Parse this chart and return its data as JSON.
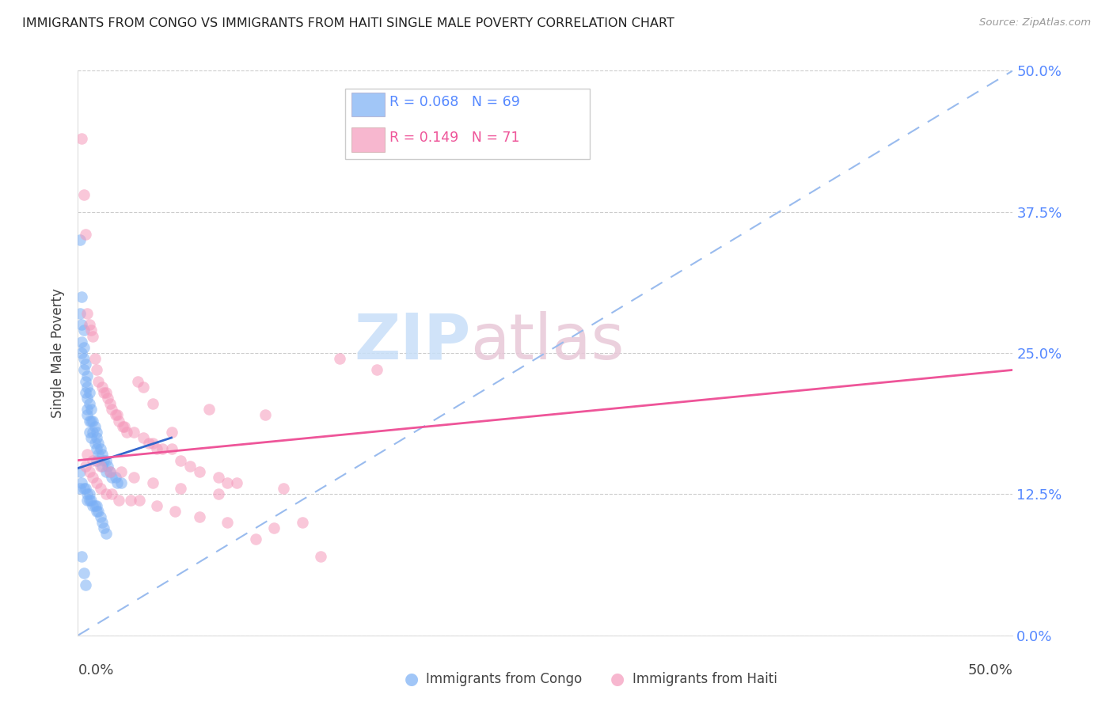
{
  "title": "IMMIGRANTS FROM CONGO VS IMMIGRANTS FROM HAITI SINGLE MALE POVERTY CORRELATION CHART",
  "source": "Source: ZipAtlas.com",
  "ylabel": "Single Male Poverty",
  "ytick_values": [
    0.0,
    12.5,
    25.0,
    37.5,
    50.0
  ],
  "xlim": [
    0.0,
    50.0
  ],
  "ylim": [
    0.0,
    50.0
  ],
  "congo_R": "0.068",
  "congo_N": "69",
  "haiti_R": "0.149",
  "haiti_N": "71",
  "congo_color": "#7aaff5",
  "haiti_color": "#f599bb",
  "congo_trend_color": "#3366cc",
  "haiti_trend_color": "#ee5599",
  "diagonal_color": "#99bbee",
  "watermark_zip": "ZIP",
  "watermark_atlas": "atlas",
  "congo_x": [
    0.1,
    0.1,
    0.2,
    0.2,
    0.2,
    0.2,
    0.3,
    0.3,
    0.3,
    0.3,
    0.4,
    0.4,
    0.4,
    0.5,
    0.5,
    0.5,
    0.5,
    0.5,
    0.6,
    0.6,
    0.6,
    0.6,
    0.7,
    0.7,
    0.7,
    0.8,
    0.8,
    0.9,
    0.9,
    1.0,
    1.0,
    1.0,
    1.0,
    1.1,
    1.1,
    1.2,
    1.3,
    1.3,
    1.4,
    1.5,
    1.5,
    1.6,
    1.7,
    1.8,
    2.0,
    2.1,
    2.3,
    0.1,
    0.1,
    0.2,
    0.3,
    0.4,
    0.5,
    0.5,
    0.6,
    0.6,
    0.7,
    0.8,
    0.9,
    1.0,
    1.0,
    1.1,
    1.2,
    1.3,
    1.4,
    1.5,
    0.2,
    0.3,
    0.4
  ],
  "congo_y": [
    35.0,
    28.5,
    30.0,
    27.5,
    26.0,
    25.0,
    27.0,
    25.5,
    24.5,
    23.5,
    24.0,
    22.5,
    21.5,
    23.0,
    22.0,
    21.0,
    20.0,
    19.5,
    21.5,
    20.5,
    19.0,
    18.0,
    20.0,
    19.0,
    17.5,
    19.0,
    18.0,
    18.5,
    17.0,
    18.0,
    17.5,
    16.5,
    15.5,
    17.0,
    16.0,
    16.5,
    16.0,
    15.0,
    15.5,
    15.5,
    14.5,
    15.0,
    14.5,
    14.0,
    14.0,
    13.5,
    13.5,
    14.5,
    13.0,
    13.5,
    13.0,
    13.0,
    12.5,
    12.0,
    12.5,
    12.0,
    12.0,
    11.5,
    11.5,
    11.5,
    11.0,
    11.0,
    10.5,
    10.0,
    9.5,
    9.0,
    7.0,
    5.5,
    4.5
  ],
  "haiti_x": [
    0.2,
    0.3,
    0.4,
    0.5,
    0.6,
    0.7,
    0.8,
    0.9,
    1.0,
    1.1,
    1.3,
    1.4,
    1.5,
    1.6,
    1.7,
    1.8,
    2.0,
    2.1,
    2.2,
    2.4,
    2.5,
    2.6,
    3.0,
    3.2,
    3.5,
    3.5,
    3.8,
    4.0,
    4.0,
    4.2,
    4.5,
    5.0,
    5.0,
    5.5,
    6.0,
    6.5,
    7.0,
    7.5,
    8.0,
    8.5,
    9.5,
    10.0,
    11.0,
    13.0,
    14.0,
    16.0,
    0.4,
    0.6,
    0.8,
    1.0,
    1.2,
    1.5,
    1.8,
    2.2,
    2.8,
    3.3,
    4.2,
    5.2,
    6.5,
    8.0,
    10.5,
    0.5,
    0.8,
    1.2,
    1.7,
    2.3,
    3.0,
    4.0,
    5.5,
    7.5,
    12.0
  ],
  "haiti_y": [
    44.0,
    39.0,
    35.5,
    28.5,
    27.5,
    27.0,
    26.5,
    24.5,
    23.5,
    22.5,
    22.0,
    21.5,
    21.5,
    21.0,
    20.5,
    20.0,
    19.5,
    19.5,
    19.0,
    18.5,
    18.5,
    18.0,
    18.0,
    22.5,
    22.0,
    17.5,
    17.0,
    17.0,
    20.5,
    16.5,
    16.5,
    16.5,
    18.0,
    15.5,
    15.0,
    14.5,
    20.0,
    14.0,
    13.5,
    13.5,
    8.5,
    19.5,
    13.0,
    7.0,
    24.5,
    23.5,
    15.0,
    14.5,
    14.0,
    13.5,
    13.0,
    12.5,
    12.5,
    12.0,
    12.0,
    12.0,
    11.5,
    11.0,
    10.5,
    10.0,
    9.5,
    16.0,
    15.5,
    15.0,
    14.5,
    14.5,
    14.0,
    13.5,
    13.0,
    12.5,
    10.0
  ],
  "congo_trend_x0": 0.0,
  "congo_trend_y0": 14.8,
  "congo_trend_x1": 5.0,
  "congo_trend_y1": 17.5,
  "haiti_trend_x0": 0.0,
  "haiti_trend_y0": 15.5,
  "haiti_trend_x1": 50.0,
  "haiti_trend_y1": 23.5
}
